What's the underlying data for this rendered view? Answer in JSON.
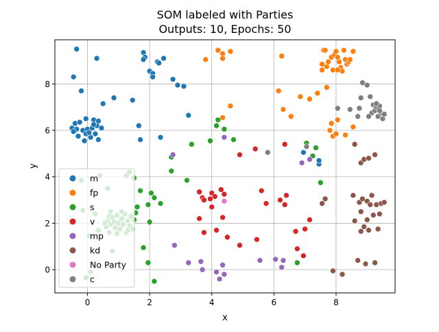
{
  "colors": {
    "m": "#1f77b4",
    "fp": "#ff7f0e",
    "s": "#2ca02c",
    "v": "#d62728",
    "mp": "#9467bd",
    "kd": "#8c564b",
    "No Party": "#e377c2",
    "c": "#7f7f7f",
    "grid": "#b0b0b0",
    "axis": "#000000"
  },
  "chart_data": {
    "type": "scatter",
    "title": "SOM labeled with Parties",
    "subtitle": "Outputs: 10, Epochs: 50",
    "xlabel": "x",
    "ylabel": "y",
    "xlim": [
      -1.05,
      9.9
    ],
    "ylim": [
      -1.0,
      9.9
    ],
    "xticks": [
      0,
      2,
      4,
      6,
      8
    ],
    "yticks": [
      0,
      2,
      4,
      6,
      8
    ],
    "grid": true,
    "legend_position": "lower-left",
    "legend": [
      "m",
      "fp",
      "s",
      "v",
      "mp",
      "kd",
      "No Party",
      "c"
    ],
    "series": [
      {
        "name": "m",
        "points": [
          [
            -0.35,
            9.5
          ],
          [
            0.3,
            9.1
          ],
          [
            -0.45,
            8.3
          ],
          [
            -0.2,
            7.7
          ],
          [
            0.5,
            7.15
          ],
          [
            0.85,
            7.4
          ],
          [
            1.45,
            7.3
          ],
          [
            1.65,
            6.2
          ],
          [
            1.7,
            5.6
          ],
          [
            2.35,
            5.7
          ],
          [
            3.25,
            6.65
          ],
          [
            -0.4,
            6.3
          ],
          [
            -0.25,
            6.35
          ],
          [
            -0.05,
            6.5
          ],
          [
            0.2,
            6.45
          ],
          [
            0.35,
            6.4
          ],
          [
            -0.5,
            6.1
          ],
          [
            -0.35,
            6.05
          ],
          [
            -0.15,
            6.0
          ],
          [
            0.0,
            6.05
          ],
          [
            0.15,
            6.1
          ],
          [
            0.3,
            6.2
          ],
          [
            0.45,
            6.1
          ],
          [
            -0.45,
            5.95
          ],
          [
            -0.3,
            5.75
          ],
          [
            -0.05,
            5.85
          ],
          [
            0.1,
            5.7
          ],
          [
            0.25,
            5.85
          ],
          [
            0.35,
            5.6
          ],
          [
            -0.1,
            5.55
          ],
          [
            0.05,
            5.9
          ],
          [
            0.2,
            6.25
          ],
          [
            1.8,
            9.35
          ],
          [
            1.85,
            9.15
          ],
          [
            1.8,
            9.05
          ],
          [
            2.0,
            8.55
          ],
          [
            2.1,
            8.45
          ],
          [
            2.1,
            8.3
          ],
          [
            2.25,
            8.95
          ],
          [
            2.3,
            8.9
          ],
          [
            2.45,
            9.1
          ],
          [
            2.75,
            8.2
          ],
          [
            2.9,
            7.95
          ],
          [
            3.1,
            7.9
          ],
          [
            6.95,
            5.05
          ],
          [
            7.45,
            4.55
          ],
          [
            7.45,
            4.7
          ]
        ]
      },
      {
        "name": "fp",
        "points": [
          [
            4.2,
            9.45
          ],
          [
            4.35,
            9.3
          ],
          [
            4.35,
            9.1
          ],
          [
            4.6,
            9.4
          ],
          [
            3.8,
            9.05
          ],
          [
            6.25,
            9.2
          ],
          [
            4.6,
            7.05
          ],
          [
            4.35,
            6.55
          ],
          [
            6.15,
            7.7
          ],
          [
            6.3,
            6.9
          ],
          [
            6.55,
            6.6
          ],
          [
            6.85,
            7.45
          ],
          [
            7.15,
            7.35
          ],
          [
            7.6,
            9.45
          ],
          [
            7.65,
            9.45
          ],
          [
            7.55,
            8.85
          ],
          [
            7.55,
            8.6
          ],
          [
            7.7,
            8.75
          ],
          [
            7.75,
            8.95
          ],
          [
            7.85,
            9.15
          ],
          [
            7.95,
            9.25
          ],
          [
            8.0,
            9.4
          ],
          [
            8.05,
            9.15
          ],
          [
            8.1,
            8.95
          ],
          [
            8.15,
            8.7
          ],
          [
            8.2,
            8.55
          ],
          [
            8.25,
            9.45
          ],
          [
            8.3,
            9.05
          ],
          [
            8.35,
            8.85
          ],
          [
            8.4,
            8.95
          ],
          [
            8.45,
            9.05
          ],
          [
            8.55,
            9.4
          ],
          [
            7.9,
            8.6
          ],
          [
            8.05,
            8.6
          ],
          [
            7.4,
            7.6
          ],
          [
            7.7,
            7.85
          ],
          [
            7.85,
            6.3
          ],
          [
            7.8,
            6.0
          ],
          [
            7.9,
            5.75
          ],
          [
            8.0,
            5.85
          ],
          [
            8.05,
            6.45
          ],
          [
            8.3,
            5.8
          ],
          [
            8.55,
            6.15
          ]
        ]
      },
      {
        "name": "s",
        "points": [
          [
            4.2,
            6.45
          ],
          [
            4.15,
            6.2
          ],
          [
            4.4,
            6.05
          ],
          [
            3.95,
            5.55
          ],
          [
            3.35,
            5.4
          ],
          [
            4.7,
            5.6
          ],
          [
            2.7,
            4.85
          ],
          [
            2.7,
            4.25
          ],
          [
            3.2,
            3.85
          ],
          [
            1.7,
            3.4
          ],
          [
            2.05,
            3.3
          ],
          [
            2.15,
            3.1
          ],
          [
            1.6,
            2.7
          ],
          [
            1.95,
            2.8
          ],
          [
            2.35,
            2.85
          ],
          [
            2.0,
            2.05
          ],
          [
            1.8,
            0.95
          ],
          [
            1.95,
            0.3
          ],
          [
            2.15,
            -0.5
          ],
          [
            7.05,
            5.45
          ],
          [
            7.35,
            5.25
          ],
          [
            7.25,
            4.9
          ],
          [
            7.5,
            3.75
          ],
          [
            6.75,
            0.3
          ],
          [
            -0.2,
            3.85
          ],
          [
            0.4,
            4.05
          ],
          [
            0.65,
            3.5
          ],
          [
            1.25,
            4.05
          ],
          [
            1.35,
            4.2
          ],
          [
            1.5,
            3.95
          ],
          [
            -0.15,
            2.55
          ],
          [
            0.25,
            2.4
          ],
          [
            0.05,
            1.45
          ],
          [
            -0.05,
            -0.35
          ],
          [
            0.35,
            1.7
          ],
          [
            0.6,
            1.85
          ],
          [
            0.65,
            2.1
          ],
          [
            0.7,
            2.3
          ],
          [
            0.75,
            1.95
          ],
          [
            0.8,
            2.25
          ],
          [
            0.85,
            2.05
          ],
          [
            0.9,
            1.8
          ],
          [
            0.95,
            2.35
          ],
          [
            1.0,
            2.0
          ],
          [
            1.05,
            1.75
          ],
          [
            1.1,
            2.2
          ],
          [
            1.15,
            1.95
          ],
          [
            1.2,
            2.4
          ],
          [
            1.25,
            1.6
          ],
          [
            1.3,
            2.1
          ],
          [
            1.35,
            1.9
          ],
          [
            1.4,
            2.3
          ],
          [
            1.45,
            1.75
          ],
          [
            1.5,
            2.15
          ],
          [
            0.7,
            1.6
          ],
          [
            0.75,
            2.5
          ],
          [
            0.95,
            1.55
          ],
          [
            1.1,
            2.5
          ],
          [
            1.3,
            1.7
          ],
          [
            0.55,
            2.0
          ],
          [
            1.55,
            2.45
          ],
          [
            0.8,
            0.8
          ],
          [
            0.1,
            -0.1
          ]
        ]
      },
      {
        "name": "v",
        "points": [
          [
            5.4,
            5.2
          ],
          [
            4.9,
            4.95
          ],
          [
            6.35,
            5.4
          ],
          [
            3.6,
            3.35
          ],
          [
            3.7,
            3.1
          ],
          [
            3.75,
            3.0
          ],
          [
            4.0,
            3.3
          ],
          [
            4.1,
            3.15
          ],
          [
            4.3,
            3.45
          ],
          [
            4.4,
            3.25
          ],
          [
            3.95,
            3.05
          ],
          [
            3.6,
            2.2
          ],
          [
            3.75,
            1.6
          ],
          [
            4.0,
            2.7
          ],
          [
            4.35,
            2.25
          ],
          [
            4.15,
            1.7
          ],
          [
            4.5,
            1.4
          ],
          [
            4.9,
            1.05
          ],
          [
            5.45,
            1.3
          ],
          [
            5.6,
            3.4
          ],
          [
            5.75,
            2.85
          ],
          [
            6.2,
            3.0
          ],
          [
            6.35,
            2.8
          ],
          [
            6.4,
            3.2
          ],
          [
            6.7,
            1.65
          ],
          [
            7.0,
            1.75
          ],
          [
            7.15,
            2.15
          ],
          [
            6.75,
            0.9
          ],
          [
            6.95,
            0.6
          ]
        ]
      },
      {
        "name": "mp",
        "points": [
          [
            4.4,
            5.7
          ],
          [
            2.75,
            4.95
          ],
          [
            2.8,
            1.05
          ],
          [
            3.25,
            0.3
          ],
          [
            3.65,
            0.35
          ],
          [
            3.7,
            0.0
          ],
          [
            4.15,
            -0.1
          ],
          [
            4.25,
            -0.4
          ],
          [
            4.35,
            0.2
          ],
          [
            4.4,
            -0.2
          ],
          [
            5.55,
            0.4
          ],
          [
            6.05,
            0.45
          ],
          [
            6.25,
            0.1
          ],
          [
            6.3,
            0.4
          ],
          [
            6.9,
            4.6
          ],
          [
            7.15,
            4.75
          ]
        ]
      },
      {
        "name": "kd",
        "points": [
          [
            8.6,
            5.4
          ],
          [
            8.8,
            4.6
          ],
          [
            8.9,
            4.75
          ],
          [
            9.05,
            4.8
          ],
          [
            9.25,
            4.95
          ],
          [
            7.55,
            2.85
          ],
          [
            7.65,
            3.05
          ],
          [
            8.55,
            3.2
          ],
          [
            8.6,
            2.1
          ],
          [
            8.7,
            0.4
          ],
          [
            8.75,
            2.9
          ],
          [
            8.8,
            2.5
          ],
          [
            8.85,
            3.05
          ],
          [
            8.9,
            1.85
          ],
          [
            8.95,
            0.25
          ],
          [
            9.0,
            2.95
          ],
          [
            9.05,
            1.7
          ],
          [
            9.1,
            2.8
          ],
          [
            9.15,
            3.2
          ],
          [
            9.2,
            2.35
          ],
          [
            9.25,
            0.3
          ],
          [
            9.3,
            2.8
          ],
          [
            9.4,
            2.4
          ],
          [
            9.45,
            2.85
          ],
          [
            9.55,
            2.9
          ],
          [
            9.35,
            1.75
          ],
          [
            8.8,
            1.65
          ],
          [
            9.0,
            2.15
          ],
          [
            7.9,
            -0.05
          ],
          [
            8.2,
            -0.2
          ]
        ]
      },
      {
        "name": "No Party",
        "points": [
          [
            4.4,
            2.95
          ]
        ]
      },
      {
        "name": "c",
        "points": [
          [
            7.05,
            5.3
          ],
          [
            5.8,
            5.05
          ],
          [
            8.05,
            6.95
          ],
          [
            8.45,
            6.9
          ],
          [
            8.7,
            6.6
          ],
          [
            8.75,
            6.95
          ],
          [
            8.8,
            7.4
          ],
          [
            8.85,
            8.05
          ],
          [
            9.0,
            7.95
          ],
          [
            9.1,
            7.45
          ],
          [
            9.15,
            6.75
          ],
          [
            9.2,
            7.1
          ],
          [
            9.25,
            6.85
          ],
          [
            9.3,
            7.0
          ],
          [
            9.35,
            6.6
          ],
          [
            9.4,
            7.05
          ],
          [
            9.45,
            6.75
          ],
          [
            9.5,
            6.5
          ],
          [
            9.55,
            6.7
          ],
          [
            9.05,
            6.6
          ],
          [
            9.3,
            7.15
          ],
          [
            9.4,
            6.85
          ]
        ]
      }
    ]
  }
}
